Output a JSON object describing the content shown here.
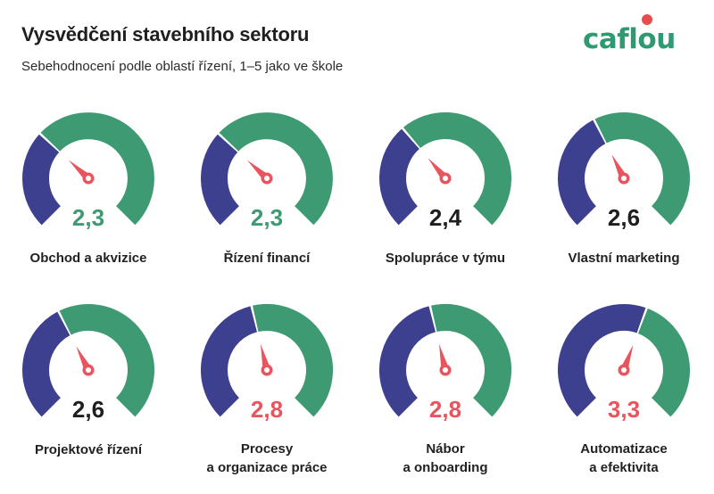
{
  "header": {
    "title": "Vysvědčení stavebního sektoru",
    "subtitle": "Sebehodnocení podle oblastí řízení, 1–5 jako ve škole"
  },
  "logo": {
    "text_before": "cafl",
    "text_mark": "o",
    "text_after": "u",
    "mark_color": "#e84c4c"
  },
  "colors": {
    "navy": "#3d3f8f",
    "green": "#3e9a72",
    "needle": "#e8555e",
    "value_green": "#3e9a72",
    "value_black": "#1f1f1f",
    "value_red": "#e8555e"
  },
  "chart_data": {
    "type": "gauge",
    "title": "Vysvědčení stavebního sektoru",
    "subtitle": "Sebehodnocení podle oblastí řízení, 1–5 jako ve škole",
    "scale": [
      1,
      5
    ],
    "items": [
      {
        "label": [
          "Obchod a akvizice"
        ],
        "value": 2.3,
        "display": "2,3",
        "value_color": "green"
      },
      {
        "label": [
          "Řízení financí"
        ],
        "value": 2.3,
        "display": "2,3",
        "value_color": "green"
      },
      {
        "label": [
          "Spolupráce v týmu"
        ],
        "value": 2.4,
        "display": "2,4",
        "value_color": "black"
      },
      {
        "label": [
          "Vlastní marketing"
        ],
        "value": 2.6,
        "display": "2,6",
        "value_color": "black"
      },
      {
        "label": [
          "Projektové řízení"
        ],
        "value": 2.6,
        "display": "2,6",
        "value_color": "black"
      },
      {
        "label": [
          "Procesy",
          "a organizace práce"
        ],
        "value": 2.8,
        "display": "2,8",
        "value_color": "red"
      },
      {
        "label": [
          "Nábor",
          "a onboarding"
        ],
        "value": 2.8,
        "display": "2,8",
        "value_color": "red"
      },
      {
        "label": [
          "Automatizace",
          "a efektivita"
        ],
        "value": 3.3,
        "display": "3,3",
        "value_color": "red"
      }
    ]
  }
}
